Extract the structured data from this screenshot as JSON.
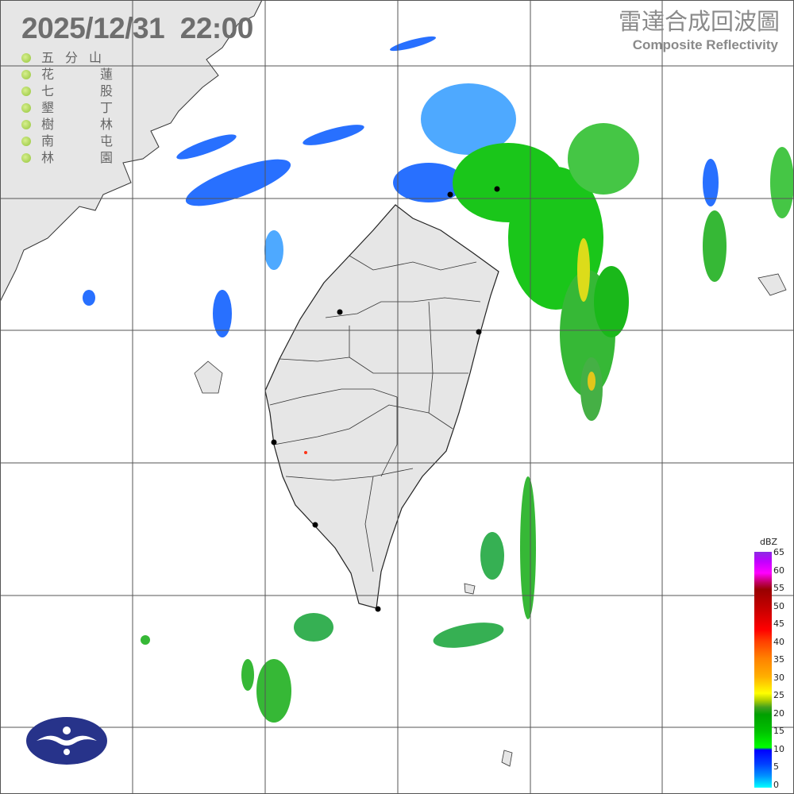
{
  "header": {
    "datetime": "2025/12/31  22:00",
    "title_zh": "雷達合成回波圖",
    "title_en": "Composite Reflectivity"
  },
  "stations": [
    {
      "name": "五分山"
    },
    {
      "name": "花蓮"
    },
    {
      "name": "七股"
    },
    {
      "name": "墾丁"
    },
    {
      "name": "樹林"
    },
    {
      "name": "南屯"
    },
    {
      "name": "林園"
    }
  ],
  "colorbar": {
    "unit": "dBZ",
    "ticks": [
      "65",
      "60",
      "55",
      "50",
      "45",
      "40",
      "35",
      "30",
      "25",
      "20",
      "15",
      "10",
      "5",
      "0"
    ]
  },
  "colors": {
    "land": "#e6e6e6",
    "grid": "#555555",
    "station_dot": "#9acd32"
  }
}
